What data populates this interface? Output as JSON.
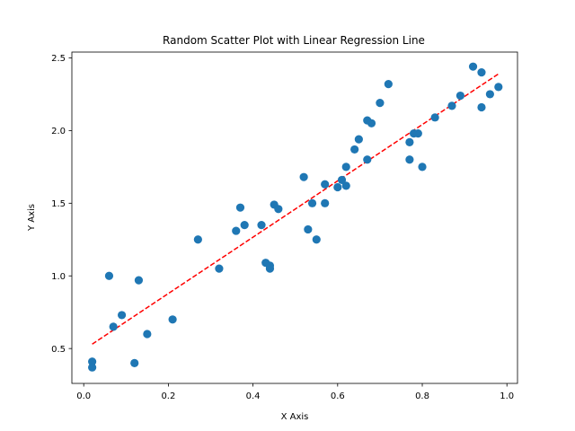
{
  "chart_data": {
    "type": "scatter",
    "title": "Random Scatter Plot with Linear Regression Line",
    "xlabel": "X Axis",
    "ylabel": "Y Axis",
    "xlim": [
      -0.028,
      1.025
    ],
    "ylim": [
      0.26,
      2.54
    ],
    "xticks": [
      0.0,
      0.2,
      0.4,
      0.6,
      0.8,
      1.0
    ],
    "xtick_labels": [
      "0.0",
      "0.2",
      "0.4",
      "0.6",
      "0.8",
      "1.0"
    ],
    "yticks": [
      0.5,
      1.0,
      1.5,
      2.0,
      2.5
    ],
    "ytick_labels": [
      "0.5",
      "1.0",
      "1.5",
      "2.0",
      "2.5"
    ],
    "grid": false,
    "legend": false,
    "points": {
      "color": "#1f77b4",
      "x": [
        0.02,
        0.02,
        0.06,
        0.07,
        0.09,
        0.12,
        0.13,
        0.15,
        0.21,
        0.27,
        0.32,
        0.36,
        0.37,
        0.38,
        0.42,
        0.43,
        0.44,
        0.44,
        0.45,
        0.46,
        0.52,
        0.53,
        0.54,
        0.55,
        0.57,
        0.57,
        0.6,
        0.61,
        0.62,
        0.62,
        0.64,
        0.65,
        0.67,
        0.67,
        0.68,
        0.7,
        0.72,
        0.77,
        0.77,
        0.78,
        0.79,
        0.8,
        0.83,
        0.87,
        0.89,
        0.92,
        0.94,
        0.94,
        0.96,
        0.98
      ],
      "y": [
        0.41,
        0.37,
        1.0,
        0.65,
        0.73,
        0.4,
        0.97,
        0.6,
        0.7,
        1.25,
        1.05,
        1.31,
        1.47,
        1.35,
        1.35,
        1.09,
        1.07,
        1.05,
        1.49,
        1.46,
        1.68,
        1.32,
        1.5,
        1.25,
        1.5,
        1.63,
        1.61,
        1.66,
        1.62,
        1.75,
        1.87,
        1.94,
        2.07,
        1.8,
        2.05,
        2.19,
        2.32,
        1.8,
        1.92,
        1.98,
        1.98,
        1.75,
        2.09,
        2.17,
        2.24,
        2.44,
        2.16,
        2.4,
        2.25,
        2.3
      ]
    },
    "regression": {
      "color": "#ff0000",
      "style": "dashed",
      "x": [
        0.02,
        0.98
      ],
      "y": [
        0.53,
        2.39
      ]
    }
  }
}
